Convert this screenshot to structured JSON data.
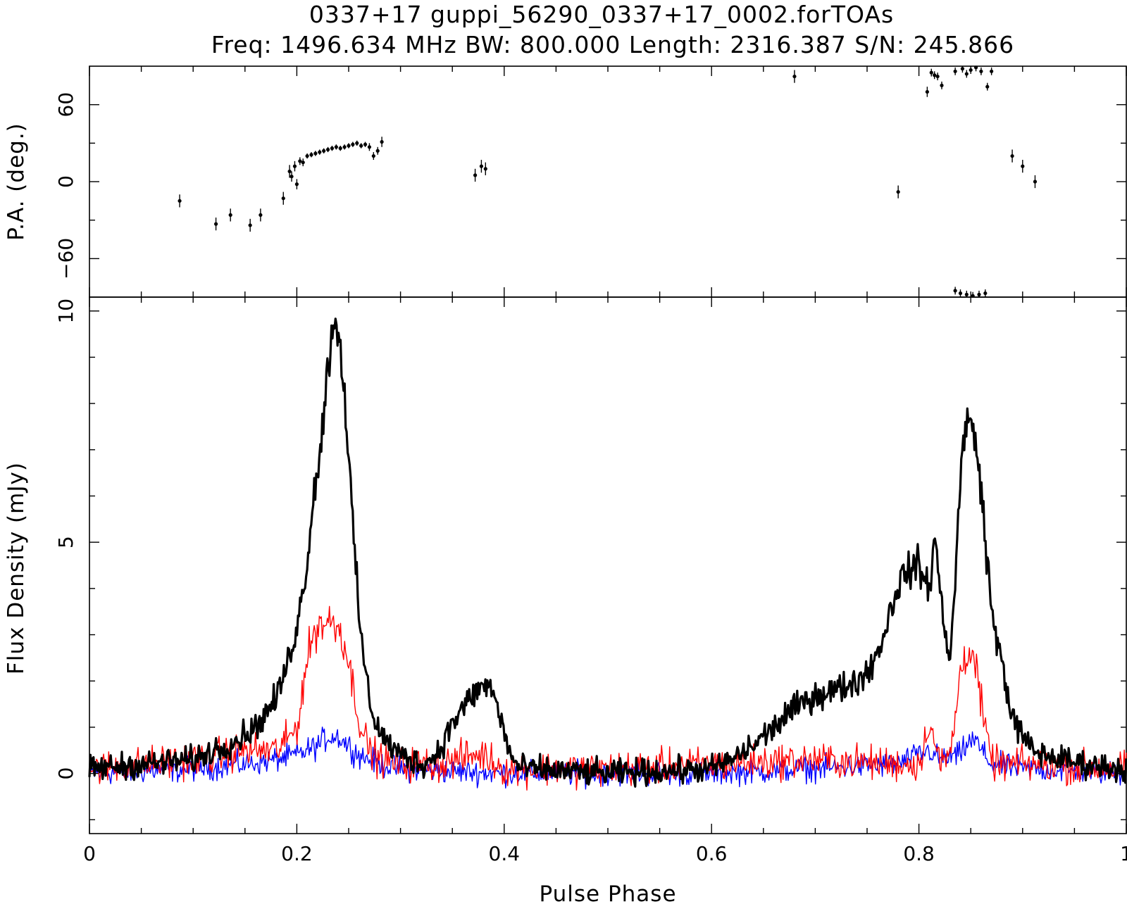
{
  "chart_data": {
    "type": "line",
    "title": "0337+17 guppi_56290_0337+17_0002.forTOAs",
    "subtitle": "Freq: 1496.634 MHz BW: 800.000 Length: 2316.387 S/N: 245.866",
    "xlabel": "Pulse Phase",
    "xlim": [
      0,
      1
    ],
    "x_ticks": [
      "0",
      "0.2",
      "0.4",
      "0.6",
      "0.8",
      "1"
    ],
    "x_tick_values": [
      0,
      0.2,
      0.4,
      0.6,
      0.8,
      1
    ],
    "panels": {
      "pa": {
        "ylabel": "P.A. (deg.)",
        "ylim": [
          -90,
          90
        ],
        "y_ticks": [
          "−60",
          "0",
          "60"
        ],
        "y_tick_values": [
          -60,
          0,
          60
        ],
        "points": [
          [
            0.087,
            -15,
            5
          ],
          [
            0.122,
            -33,
            5
          ],
          [
            0.136,
            -26,
            5
          ],
          [
            0.155,
            -34,
            5
          ],
          [
            0.165,
            -26,
            5
          ],
          [
            0.187,
            -13,
            5
          ],
          [
            0.193,
            8,
            5
          ],
          [
            0.195,
            4,
            4
          ],
          [
            0.198,
            12,
            4
          ],
          [
            0.2,
            -2,
            4
          ],
          [
            0.203,
            16,
            3
          ],
          [
            0.206,
            15,
            3
          ],
          [
            0.21,
            20,
            2
          ],
          [
            0.214,
            21,
            2
          ],
          [
            0.218,
            22,
            2
          ],
          [
            0.222,
            23,
            2
          ],
          [
            0.226,
            24,
            2
          ],
          [
            0.23,
            25,
            2
          ],
          [
            0.234,
            26,
            2
          ],
          [
            0.238,
            27,
            2
          ],
          [
            0.242,
            26,
            2
          ],
          [
            0.246,
            27,
            2
          ],
          [
            0.25,
            28,
            2
          ],
          [
            0.254,
            29,
            2
          ],
          [
            0.258,
            30,
            2
          ],
          [
            0.262,
            28,
            2
          ],
          [
            0.266,
            29,
            2
          ],
          [
            0.27,
            27,
            3
          ],
          [
            0.274,
            20,
            3
          ],
          [
            0.278,
            24,
            3
          ],
          [
            0.282,
            31,
            4
          ],
          [
            0.372,
            5,
            5
          ],
          [
            0.378,
            12,
            5
          ],
          [
            0.382,
            10,
            5
          ],
          [
            0.68,
            82,
            5
          ],
          [
            0.78,
            -8,
            5
          ],
          [
            0.808,
            70,
            4
          ],
          [
            0.812,
            85,
            3
          ],
          [
            0.815,
            83,
            3
          ],
          [
            0.818,
            82,
            3
          ],
          [
            0.822,
            75,
            3
          ],
          [
            0.835,
            86,
            3
          ],
          [
            0.842,
            88,
            3
          ],
          [
            0.846,
            84,
            3
          ],
          [
            0.85,
            87,
            3
          ],
          [
            0.855,
            89,
            3
          ],
          [
            0.86,
            86,
            3
          ],
          [
            0.866,
            74,
            3
          ],
          [
            0.87,
            86,
            3
          ],
          [
            0.835,
            -85,
            3
          ],
          [
            0.84,
            -87,
            3
          ],
          [
            0.846,
            -88,
            3
          ],
          [
            0.852,
            -89,
            3
          ],
          [
            0.858,
            -88,
            3
          ],
          [
            0.864,
            -87,
            3
          ],
          [
            0.89,
            20,
            5
          ],
          [
            0.9,
            12,
            5
          ],
          [
            0.912,
            0,
            5
          ]
        ]
      },
      "flux": {
        "ylabel": "Flux Density (mJy)",
        "ylim": [
          -1.3,
          10.3
        ],
        "y_ticks": [
          "0",
          "5",
          "10"
        ],
        "y_tick_values": [
          0,
          5,
          10
        ],
        "series": [
          {
            "color": "#000000",
            "width": 3.2,
            "x": [
              0,
              0.05,
              0.1,
              0.14,
              0.16,
              0.18,
              0.19,
              0.2,
              0.205,
              0.21,
              0.215,
              0.22,
              0.225,
              0.23,
              0.235,
              0.24,
              0.245,
              0.25,
              0.255,
              0.26,
              0.265,
              0.27,
              0.275,
              0.28,
              0.29,
              0.3,
              0.31,
              0.32,
              0.33,
              0.34,
              0.35,
              0.36,
              0.37,
              0.38,
              0.385,
              0.39,
              0.395,
              0.4,
              0.405,
              0.41,
              0.42,
              0.5,
              0.6,
              0.62,
              0.64,
              0.66,
              0.68,
              0.7,
              0.72,
              0.74,
              0.75,
              0.76,
              0.77,
              0.78,
              0.79,
              0.8,
              0.805,
              0.81,
              0.815,
              0.82,
              0.825,
              0.83,
              0.835,
              0.84,
              0.845,
              0.85,
              0.855,
              0.86,
              0.865,
              0.87,
              0.875,
              0.88,
              0.885,
              0.89,
              0.9,
              0.91,
              0.92,
              0.94,
              0.96,
              1.0
            ],
            "y": [
              0.1,
              0.2,
              0.3,
              0.7,
              1.0,
              1.6,
              2.3,
              3.2,
              3.8,
              4.6,
              5.8,
              6.6,
              7.5,
              8.8,
              9.8,
              9.6,
              8.6,
              6.8,
              5.0,
              3.4,
              2.4,
              1.6,
              1.2,
              0.9,
              0.6,
              0.4,
              0.3,
              0.2,
              0.3,
              0.6,
              1.1,
              1.4,
              1.7,
              1.9,
              1.9,
              1.7,
              1.3,
              0.9,
              0.5,
              0.2,
              0.1,
              0.0,
              0.1,
              0.3,
              0.6,
              1.0,
              1.4,
              1.7,
              1.8,
              2.0,
              2.2,
              2.6,
              3.3,
              4.1,
              4.4,
              4.5,
              4.2,
              4.0,
              5.1,
              4.1,
              3.0,
              2.6,
              4.1,
              6.4,
              7.7,
              7.5,
              7.1,
              6.2,
              4.8,
              3.6,
              2.8,
              2.5,
              1.8,
              1.2,
              0.8,
              0.5,
              0.4,
              0.3,
              0.2,
              0.1
            ],
            "noise": 0.14
          },
          {
            "color": "#ff0000",
            "width": 1.4,
            "x": [
              0,
              0.1,
              0.15,
              0.18,
              0.19,
              0.2,
              0.205,
              0.21,
              0.215,
              0.22,
              0.23,
              0.24,
              0.245,
              0.25,
              0.255,
              0.26,
              0.265,
              0.27,
              0.28,
              0.3,
              0.34,
              0.37,
              0.38,
              0.4,
              0.5,
              0.6,
              0.7,
              0.78,
              0.8,
              0.805,
              0.81,
              0.815,
              0.82,
              0.83,
              0.835,
              0.84,
              0.845,
              0.85,
              0.855,
              0.86,
              0.865,
              0.87,
              0.875,
              0.88,
              0.9,
              1.0
            ],
            "y": [
              0.1,
              0.3,
              0.5,
              0.5,
              0.7,
              1.0,
              1.7,
              2.5,
              2.9,
              3.2,
              3.3,
              3.2,
              2.9,
              2.4,
              1.8,
              1.2,
              0.8,
              0.5,
              0.3,
              0.2,
              0.2,
              0.4,
              0.4,
              0.1,
              0.1,
              0.2,
              0.3,
              0.2,
              0.2,
              0.6,
              1.2,
              0.7,
              0.2,
              0.4,
              1.2,
              2.2,
              2.6,
              2.7,
              2.3,
              1.5,
              0.8,
              0.3,
              0.2,
              0.2,
              0.2,
              0.1
            ],
            "noise": 0.18
          },
          {
            "color": "#0000ff",
            "width": 1.4,
            "x": [
              0,
              0.1,
              0.15,
              0.18,
              0.2,
              0.21,
              0.22,
              0.23,
              0.24,
              0.25,
              0.26,
              0.27,
              0.28,
              0.3,
              0.4,
              0.5,
              0.6,
              0.7,
              0.78,
              0.81,
              0.82,
              0.84,
              0.845,
              0.85,
              0.855,
              0.86,
              0.87,
              0.9,
              1.0
            ],
            "y": [
              0.0,
              0.1,
              0.2,
              0.3,
              0.4,
              0.5,
              0.6,
              0.8,
              0.8,
              0.6,
              0.4,
              0.3,
              0.2,
              0.1,
              0.0,
              0.0,
              0.0,
              0.1,
              0.2,
              0.5,
              0.3,
              0.4,
              0.6,
              0.7,
              0.7,
              0.5,
              0.2,
              0.1,
              0.0
            ],
            "noise": 0.13
          }
        ]
      }
    }
  }
}
